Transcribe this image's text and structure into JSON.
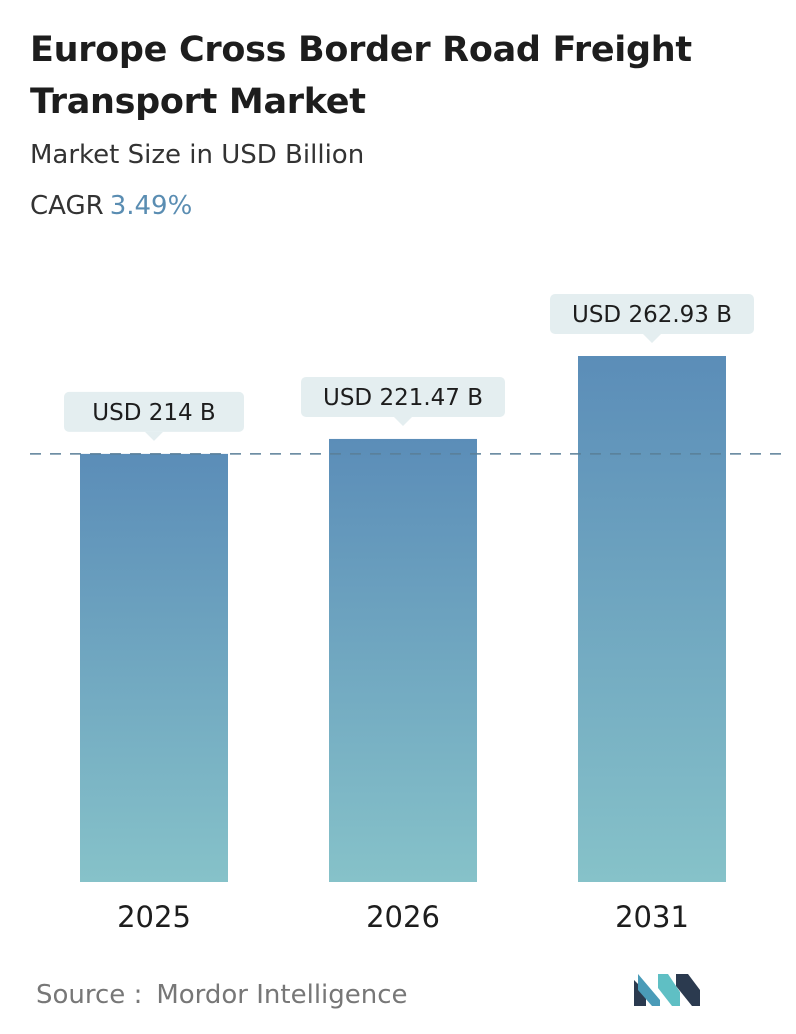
{
  "header": {
    "title": "Europe Cross Border Road Freight Transport Market",
    "subtitle": "Market Size in USD Billion",
    "cagr_label": "CAGR",
    "cagr_value": "3.49%"
  },
  "chart_data": {
    "type": "bar",
    "categories": [
      "2025",
      "2026",
      "2031"
    ],
    "values": [
      214,
      221.47,
      262.93
    ],
    "data_labels": [
      "USD 214 B",
      "USD 221.47 B",
      "USD 262.93 B"
    ],
    "reference_line_value": 214,
    "colors": {
      "bar_top": "#5b8db8",
      "bar_bottom": "#86c2c9",
      "label_bg": "#e4eef0",
      "reference_line": "#5a7f98"
    }
  },
  "footer": {
    "source_label": "Source :",
    "source_name": "Mordor Intelligence",
    "logo_icon": "mordor-intelligence-logo-icon"
  }
}
